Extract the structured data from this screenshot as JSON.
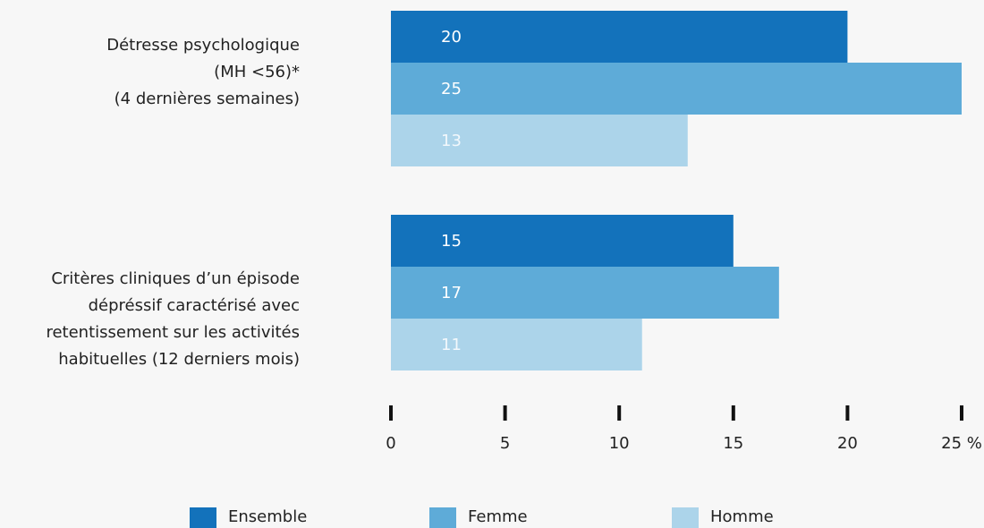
{
  "chart_data": {
    "type": "bar",
    "orientation": "horizontal",
    "categories": [
      "Détresse psychologique\n(MH <56)*\n(4 dernières semaines)",
      "Critères cliniques d’un épisode\ndépréssif caractérisé avec\nretentissement sur les activités\nhabituelles (12 derniers mois)"
    ],
    "series": [
      {
        "name": "Ensemble",
        "color": "#1372bb",
        "values": [
          20,
          15
        ]
      },
      {
        "name": "Femme",
        "color": "#5eabd8",
        "values": [
          25,
          17
        ]
      },
      {
        "name": "Homme",
        "color": "#acd4ea",
        "values": [
          13,
          11
        ]
      }
    ],
    "xlim": [
      0,
      25
    ],
    "xticks": [
      0,
      5,
      10,
      15,
      20,
      {
        "value": 25,
        "label": "25 %"
      }
    ],
    "legend": "bottom"
  }
}
